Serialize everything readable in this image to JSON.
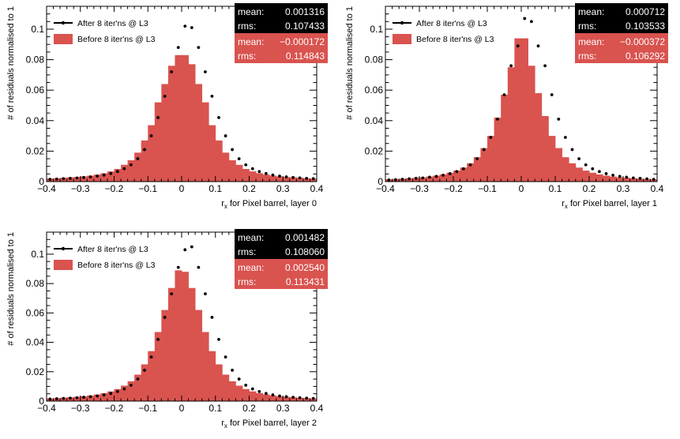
{
  "chart_data": [
    {
      "type": "histogram",
      "xlabel": "r_x for Pixel barrel, layer 0",
      "ylabel": "# of residuals normalised to 1",
      "xlim": [
        -0.4,
        0.4
      ],
      "ylim": [
        0,
        0.115
      ],
      "x_ticks": [
        "−0.4",
        "−0.3",
        "−0.2",
        "−0.1",
        "0",
        "0.1",
        "0.2",
        "0.3",
        "0.4"
      ],
      "y_ticks": [
        "0",
        "0.02",
        "0.04",
        "0.06",
        "0.08",
        "0.1"
      ],
      "bin_edges_start": -0.4,
      "bin_width": 0.02,
      "series": [
        {
          "name": "Before 8 iter'ns @ L3",
          "style": "filled-histogram",
          "color": "#d9534f",
          "values": [
            0.002,
            0.0022,
            0.0025,
            0.0028,
            0.003,
            0.0034,
            0.0039,
            0.0046,
            0.0055,
            0.0067,
            0.0083,
            0.011,
            0.014,
            0.019,
            0.027,
            0.037,
            0.052,
            0.064,
            0.076,
            0.083,
            0.083,
            0.077,
            0.064,
            0.052,
            0.037,
            0.027,
            0.019,
            0.014,
            0.011,
            0.0083,
            0.0067,
            0.0055,
            0.0046,
            0.0039,
            0.0034,
            0.003,
            0.0028,
            0.0025,
            0.0022,
            0.002
          ]
        },
        {
          "name": "After 8 iter'ns @ L3",
          "style": "points",
          "color": "#000000",
          "values": [
            0.0015,
            0.0017,
            0.0019,
            0.0021,
            0.0024,
            0.0027,
            0.0031,
            0.0036,
            0.0043,
            0.0053,
            0.0066,
            0.0085,
            0.011,
            0.015,
            0.021,
            0.03,
            0.042,
            0.056,
            0.072,
            0.088,
            0.102,
            0.101,
            0.088,
            0.072,
            0.056,
            0.042,
            0.03,
            0.021,
            0.015,
            0.011,
            0.0085,
            0.0066,
            0.0053,
            0.0043,
            0.0036,
            0.0031,
            0.0027,
            0.0024,
            0.0021,
            0.0019
          ]
        }
      ],
      "stats": [
        {
          "series": "After 8 iter'ns @ L3",
          "mean_label": "mean:",
          "mean": "0.001316",
          "rms_label": "rms:",
          "rms": "0.107433",
          "bg": "#000000"
        },
        {
          "series": "Before 8 iter'ns @ L3",
          "mean_label": "mean:",
          "mean": "−0.000172",
          "rms_label": "rms:",
          "rms": "0.114843",
          "bg": "#d9534f"
        }
      ]
    },
    {
      "type": "histogram",
      "xlabel": "r_x for Pixel barrel, layer 1",
      "ylabel": "# of residuals normalised to 1",
      "xlim": [
        -0.4,
        0.4
      ],
      "ylim": [
        0,
        0.115
      ],
      "x_ticks": [
        "−0.4",
        "−0.3",
        "−0.2",
        "−0.1",
        "0",
        "0.1",
        "0.2",
        "0.3",
        "0.4"
      ],
      "y_ticks": [
        "0",
        "0.02",
        "0.04",
        "0.06",
        "0.08",
        "0.1"
      ],
      "bin_edges_start": -0.4,
      "bin_width": 0.02,
      "series": [
        {
          "name": "Before 8 iter'ns @ L3",
          "style": "filled-histogram",
          "color": "#d9534f",
          "values": [
            0.0015,
            0.0017,
            0.0019,
            0.0022,
            0.0025,
            0.0028,
            0.0033,
            0.0039,
            0.0047,
            0.0058,
            0.0072,
            0.0092,
            0.012,
            0.016,
            0.022,
            0.03,
            0.042,
            0.057,
            0.075,
            0.094,
            0.094,
            0.076,
            0.058,
            0.043,
            0.03,
            0.022,
            0.016,
            0.012,
            0.0092,
            0.0072,
            0.0058,
            0.0047,
            0.0039,
            0.0033,
            0.0028,
            0.0025,
            0.0022,
            0.0019,
            0.0017,
            0.0015
          ]
        },
        {
          "name": "After 8 iter'ns @ L3",
          "style": "points",
          "color": "#000000",
          "values": [
            0.0011,
            0.0013,
            0.0015,
            0.0018,
            0.0021,
            0.0024,
            0.0029,
            0.0034,
            0.0042,
            0.0052,
            0.0066,
            0.0084,
            0.011,
            0.015,
            0.021,
            0.029,
            0.041,
            0.057,
            0.076,
            0.089,
            0.107,
            0.105,
            0.089,
            0.076,
            0.057,
            0.041,
            0.029,
            0.021,
            0.015,
            0.011,
            0.0084,
            0.0066,
            0.0052,
            0.0042,
            0.0034,
            0.0029,
            0.0024,
            0.0021,
            0.0018,
            0.0015
          ]
        }
      ],
      "stats": [
        {
          "series": "After 8 iter'ns @ L3",
          "mean_label": "mean:",
          "mean": "0.000712",
          "rms_label": "rms:",
          "rms": "0.103533",
          "bg": "#000000"
        },
        {
          "series": "Before 8 iter'ns @ L3",
          "mean_label": "mean:",
          "mean": "−0.000372",
          "rms_label": "rms:",
          "rms": "0.106292",
          "bg": "#d9534f"
        }
      ]
    },
    {
      "type": "histogram",
      "xlabel": "r_x for Pixel barrel, layer 2",
      "ylabel": "# of residuals normalised to 1",
      "xlim": [
        -0.4,
        0.4
      ],
      "ylim": [
        0,
        0.115
      ],
      "x_ticks": [
        "−0.4",
        "−0.3",
        "−0.2",
        "−0.1",
        "0",
        "0.1",
        "0.2",
        "0.3",
        "0.4"
      ],
      "y_ticks": [
        "0",
        "0.02",
        "0.04",
        "0.06",
        "0.08",
        "0.1"
      ],
      "bin_edges_start": -0.4,
      "bin_width": 0.02,
      "series": [
        {
          "name": "Before 8 iter'ns @ L3",
          "style": "filled-histogram",
          "color": "#d9534f",
          "values": [
            0.0018,
            0.002,
            0.0023,
            0.0026,
            0.0029,
            0.0033,
            0.0038,
            0.0045,
            0.0054,
            0.0066,
            0.0082,
            0.0105,
            0.0135,
            0.018,
            0.025,
            0.034,
            0.047,
            0.062,
            0.077,
            0.089,
            0.088,
            0.077,
            0.062,
            0.047,
            0.034,
            0.025,
            0.018,
            0.0135,
            0.0105,
            0.0082,
            0.0066,
            0.0054,
            0.0045,
            0.0038,
            0.0033,
            0.0029,
            0.0026,
            0.0023,
            0.002,
            0.0018
          ]
        },
        {
          "name": "After 8 iter'ns @ L3",
          "style": "points",
          "color": "#000000",
          "values": [
            0.0014,
            0.0016,
            0.0018,
            0.002,
            0.0023,
            0.0026,
            0.003,
            0.0035,
            0.0042,
            0.0052,
            0.0065,
            0.0083,
            0.0108,
            0.015,
            0.021,
            0.03,
            0.042,
            0.057,
            0.073,
            0.091,
            0.103,
            0.105,
            0.091,
            0.073,
            0.057,
            0.042,
            0.03,
            0.021,
            0.015,
            0.0108,
            0.0083,
            0.0065,
            0.0052,
            0.0042,
            0.0035,
            0.003,
            0.0026,
            0.0023,
            0.002,
            0.0018
          ]
        }
      ],
      "stats": [
        {
          "series": "After 8 iter'ns @ L3",
          "mean_label": "mean:",
          "mean": "0.001482",
          "rms_label": "rms:",
          "rms": "0.108060",
          "bg": "#000000"
        },
        {
          "series": "Before 8 iter'ns @ L3",
          "mean_label": "mean:",
          "mean": "0.002540",
          "rms_label": "rms:",
          "rms": "0.113431",
          "bg": "#d9534f"
        }
      ]
    }
  ]
}
